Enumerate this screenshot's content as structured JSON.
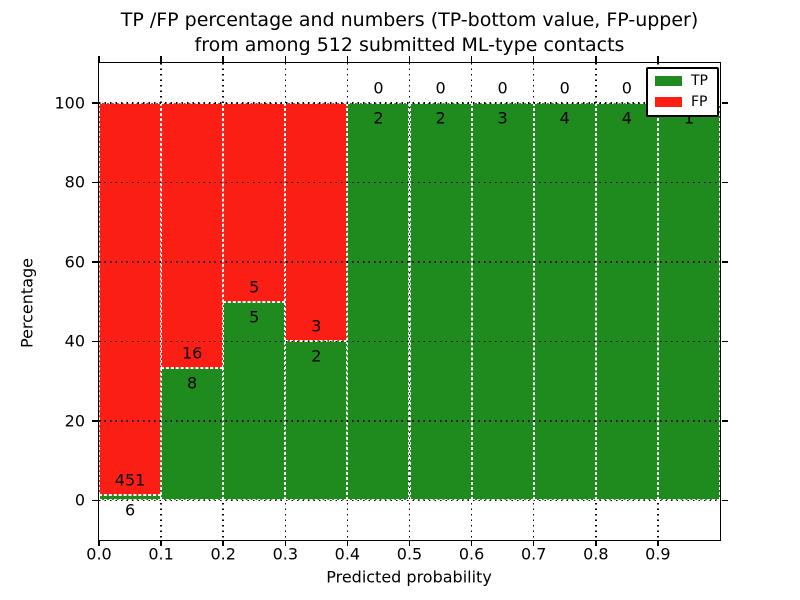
{
  "title": {
    "line1": "TP /FP percentage and numbers (TP-bottom value, FP-upper)",
    "line2": "from among 512 submitted ML-type contacts"
  },
  "chart_data": {
    "type": "bar",
    "stacked": true,
    "normalization": "each bin scaled to 100 percent, TP bottom / FP top",
    "title": "TP /FP percentage and numbers (TP-bottom value, FP-upper) from among 512 submitted ML-type contacts",
    "xlabel": "Predicted probability",
    "ylabel": "Percentage",
    "total_contacts": 512,
    "bins": [
      "0.0-0.1",
      "0.1-0.2",
      "0.2-0.3",
      "0.3-0.4",
      "0.4-0.5",
      "0.5-0.6",
      "0.6-0.7",
      "0.7-0.8",
      "0.8-0.9",
      "0.9-1.0"
    ],
    "series": [
      {
        "name": "TP",
        "color": "#1f8b1f",
        "counts": [
          6,
          8,
          5,
          2,
          2,
          2,
          3,
          4,
          4,
          1
        ]
      },
      {
        "name": "FP",
        "color": "#fa1e14",
        "counts": [
          451,
          16,
          5,
          3,
          0,
          0,
          0,
          0,
          0,
          0
        ]
      }
    ],
    "tp_percent_by_bin": [
      1.31,
      33.33,
      50.0,
      40.0,
      100.0,
      100.0,
      100.0,
      100.0,
      100.0,
      100.0
    ],
    "xticks": [
      "0.0",
      "0.1",
      "0.2",
      "0.3",
      "0.4",
      "0.5",
      "0.6",
      "0.7",
      "0.8",
      "0.9"
    ],
    "yticks": [
      0,
      20,
      40,
      60,
      80,
      100
    ],
    "xlim": [
      0.0,
      1.0
    ],
    "ylim": [
      -10,
      110
    ],
    "grid": true,
    "legend": {
      "position": "upper right",
      "entries": [
        {
          "label": "TP",
          "color": "#1f8b1f"
        },
        {
          "label": "FP",
          "color": "#fa1e14"
        }
      ]
    }
  }
}
